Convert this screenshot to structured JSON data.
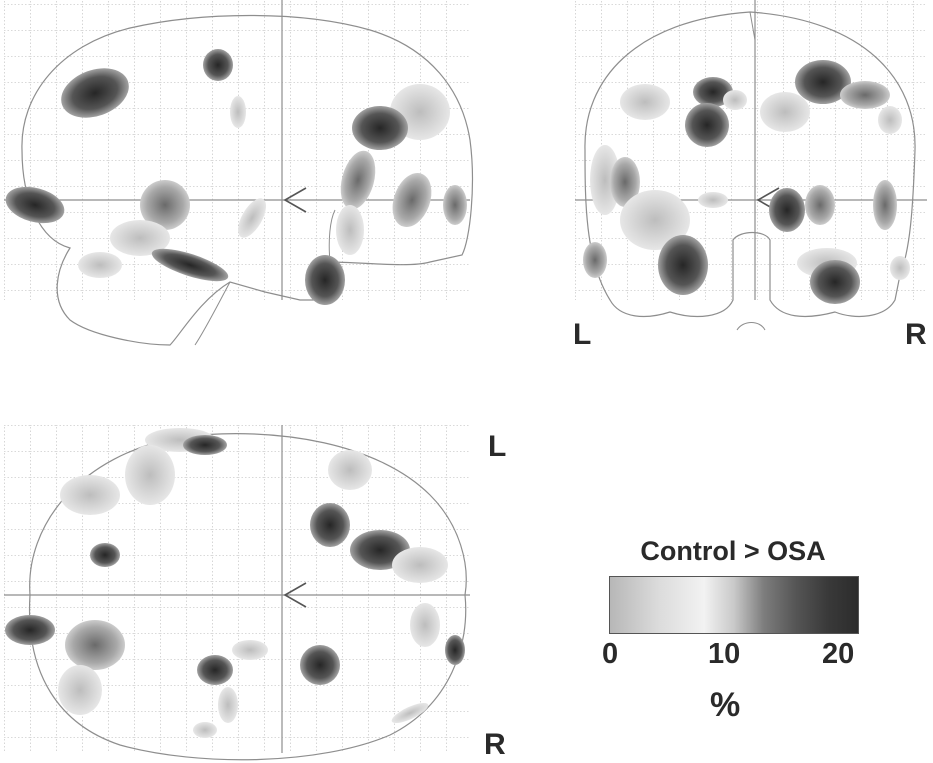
{
  "panels": {
    "coronal": {
      "left_label": "L",
      "right_label": "R"
    },
    "axial": {
      "top_label": "L",
      "bottom_label": "R"
    }
  },
  "colorbar": {
    "title": "Control > OSA",
    "ticks": [
      "0",
      "10",
      "20"
    ],
    "unit": "%",
    "colors": [
      "#b7b7b7",
      "#f2f2f2",
      "#7d7d7d",
      "#2c2c2c"
    ]
  }
}
